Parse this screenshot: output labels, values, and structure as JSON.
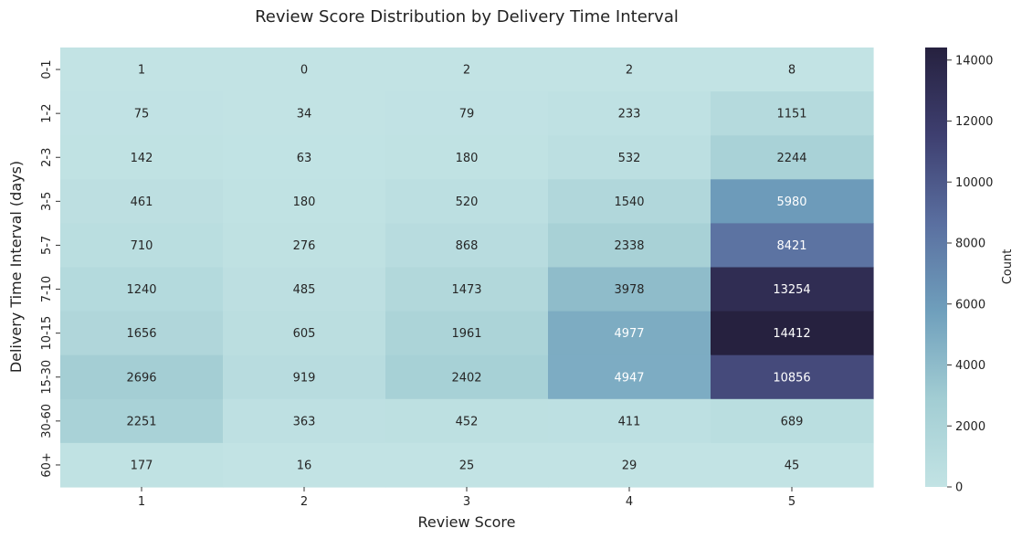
{
  "chart_data": {
    "type": "heatmap",
    "title": "Review Score Distribution by Delivery Time Interval",
    "xlabel": "Review Score",
    "ylabel": "Delivery Time Interval (days)",
    "x_categories": [
      "1",
      "2",
      "3",
      "4",
      "5"
    ],
    "y_categories": [
      "0-1",
      "1-2",
      "2-3",
      "3-5",
      "5-7",
      "7-10",
      "10-15",
      "15-30",
      "30-60",
      "60+"
    ],
    "values": [
      [
        1,
        0,
        2,
        2,
        8
      ],
      [
        75,
        34,
        79,
        233,
        1151
      ],
      [
        142,
        63,
        180,
        532,
        2244
      ],
      [
        461,
        180,
        520,
        1540,
        5980
      ],
      [
        710,
        276,
        868,
        2338,
        8421
      ],
      [
        1240,
        485,
        1473,
        3978,
        13254
      ],
      [
        1656,
        605,
        1961,
        4977,
        14412
      ],
      [
        2696,
        919,
        2402,
        4947,
        10856
      ],
      [
        2251,
        363,
        452,
        411,
        689
      ],
      [
        177,
        16,
        25,
        29,
        45
      ]
    ],
    "colorbar": {
      "label": "Count",
      "range": [
        0,
        14412
      ],
      "ticks": [
        0,
        2000,
        4000,
        6000,
        8000,
        10000,
        12000,
        14000
      ],
      "colors": [
        "#c2e3e4",
        "#a2cdd3",
        "#6f9fbc",
        "#5a6fa0",
        "#3e3f70",
        "#26213f"
      ]
    },
    "grid": false
  }
}
